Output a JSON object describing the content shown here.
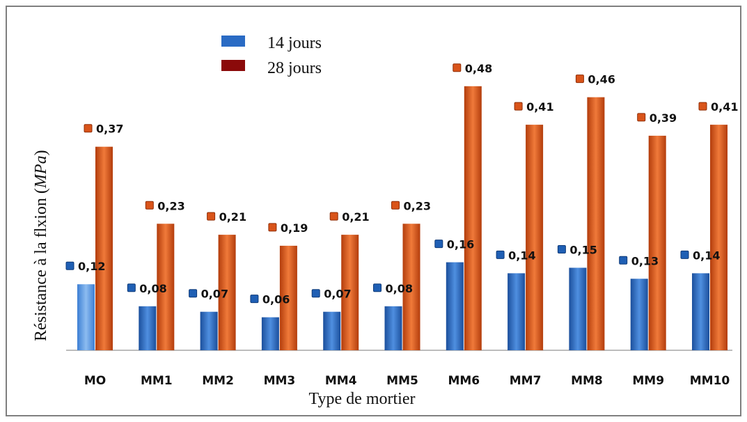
{
  "chart_data": {
    "type": "bar",
    "title": "",
    "xlabel": "Type de mortier",
    "ylabel_main": "Résistance  à la flxion ",
    "ylabel_unit": "MPa",
    "ylim": [
      0,
      0.5
    ],
    "categories": [
      "MO",
      "MM1",
      "MM2",
      "MM3",
      "MM4",
      "MM5",
      "MM6",
      "MM7",
      "MM8",
      "MM9",
      "MM10"
    ],
    "series": [
      {
        "name": "14 jours",
        "color": "#2a6bc4",
        "values": [
          0.12,
          0.08,
          0.07,
          0.06,
          0.07,
          0.08,
          0.16,
          0.14,
          0.15,
          0.13,
          0.14
        ],
        "labels": [
          "0,12",
          "0,08",
          "0,07",
          "0,06",
          "0,07",
          "0,08",
          "0,16",
          "0,14",
          "0,15",
          "0,13",
          "0,14"
        ]
      },
      {
        "name": "28 jours",
        "color": "#d9541a",
        "legend_color": "#8b0a0a",
        "values": [
          0.37,
          0.23,
          0.21,
          0.19,
          0.21,
          0.23,
          0.48,
          0.41,
          0.46,
          0.39,
          0.41
        ],
        "labels": [
          "0,37",
          "0,23",
          "0,21",
          "0,19",
          "0,21",
          "0,23",
          "0,48",
          "0,41",
          "0,46",
          "0,39",
          "0,41"
        ]
      }
    ],
    "legend_position": "top-left",
    "grid": false
  }
}
